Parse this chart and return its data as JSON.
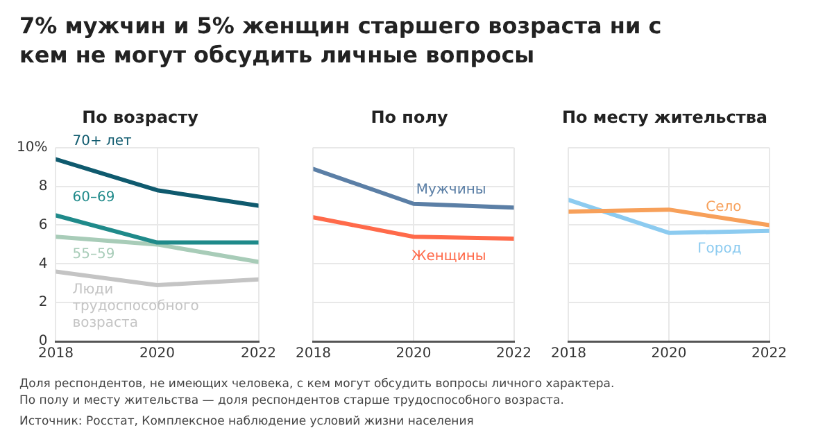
{
  "chart_data": [
    {
      "type": "other",
      "title": "7% мужчин и 5% женщин старшего возраста ни с кем не могут обсудить личные вопросы",
      "annotations": [
        "Доля респондентов, не имеющих человека, с кем могут обсудить вопросы личного характера.",
        "По полу и месту жительства — доля респондентов старше трудоспособного возраста.",
        "Источник: Росстат, Комплексное наблюдение условий жизни населения"
      ]
    },
    {
      "type": "line",
      "title": "По возрасту",
      "x": [
        2018,
        2020,
        2022
      ],
      "xlim": [
        2018,
        2022
      ],
      "xticks": [
        2018,
        2020,
        2022
      ],
      "ylim": [
        0,
        10
      ],
      "yticks": [
        0,
        2,
        4,
        6,
        8,
        {
          "value": 10,
          "label": "10%"
        }
      ],
      "grid": true,
      "legend": false,
      "marker": "none",
      "line_style": "solid",
      "series": [
        {
          "name": "70+ лет",
          "color": "#0f5a6e",
          "values": [
            9.4,
            7.8,
            7.0
          ]
        },
        {
          "name": "60–69",
          "color": "#1f8a8a",
          "values": [
            6.5,
            5.1,
            5.1
          ]
        },
        {
          "name": "55–59",
          "color": "#a8ccb8",
          "values": [
            5.4,
            5.0,
            4.1
          ]
        },
        {
          "name": "Люди трудоспособного возраста",
          "color": "#c4c4c4",
          "values": [
            3.6,
            2.9,
            3.2
          ]
        }
      ]
    },
    {
      "type": "line",
      "title": "По полу",
      "x": [
        2018,
        2020,
        2022
      ],
      "xlim": [
        2018,
        2022
      ],
      "xticks": [
        2018,
        2020,
        2022
      ],
      "ylim": [
        0,
        10
      ],
      "yticks": [
        0,
        2,
        4,
        6,
        8,
        10
      ],
      "tick_labels": "x",
      "grid": true,
      "legend": false,
      "marker": "none",
      "line_style": "solid",
      "series": [
        {
          "name": "Мужчины",
          "color": "#5b7fa6",
          "values": [
            8.9,
            7.1,
            6.9
          ]
        },
        {
          "name": "Женщины",
          "color": "#ff6a4a",
          "values": [
            6.4,
            5.4,
            5.3
          ]
        }
      ]
    },
    {
      "type": "line",
      "title": "По месту жительства",
      "x": [
        2018,
        2020,
        2022
      ],
      "xlim": [
        2018,
        2022
      ],
      "xticks": [
        2018,
        2020,
        2022
      ],
      "ylim": [
        0,
        10
      ],
      "yticks": [
        0,
        2,
        4,
        6,
        8,
        10
      ],
      "tick_labels": "x",
      "grid": true,
      "legend": false,
      "marker": "none",
      "line_style": "solid",
      "series": [
        {
          "name": "Село",
          "color": "#f7a05a",
          "values": [
            6.7,
            6.8,
            6.0
          ]
        },
        {
          "name": "Город",
          "color": "#8ccbf0",
          "values": [
            7.3,
            5.6,
            5.7
          ]
        }
      ]
    }
  ]
}
